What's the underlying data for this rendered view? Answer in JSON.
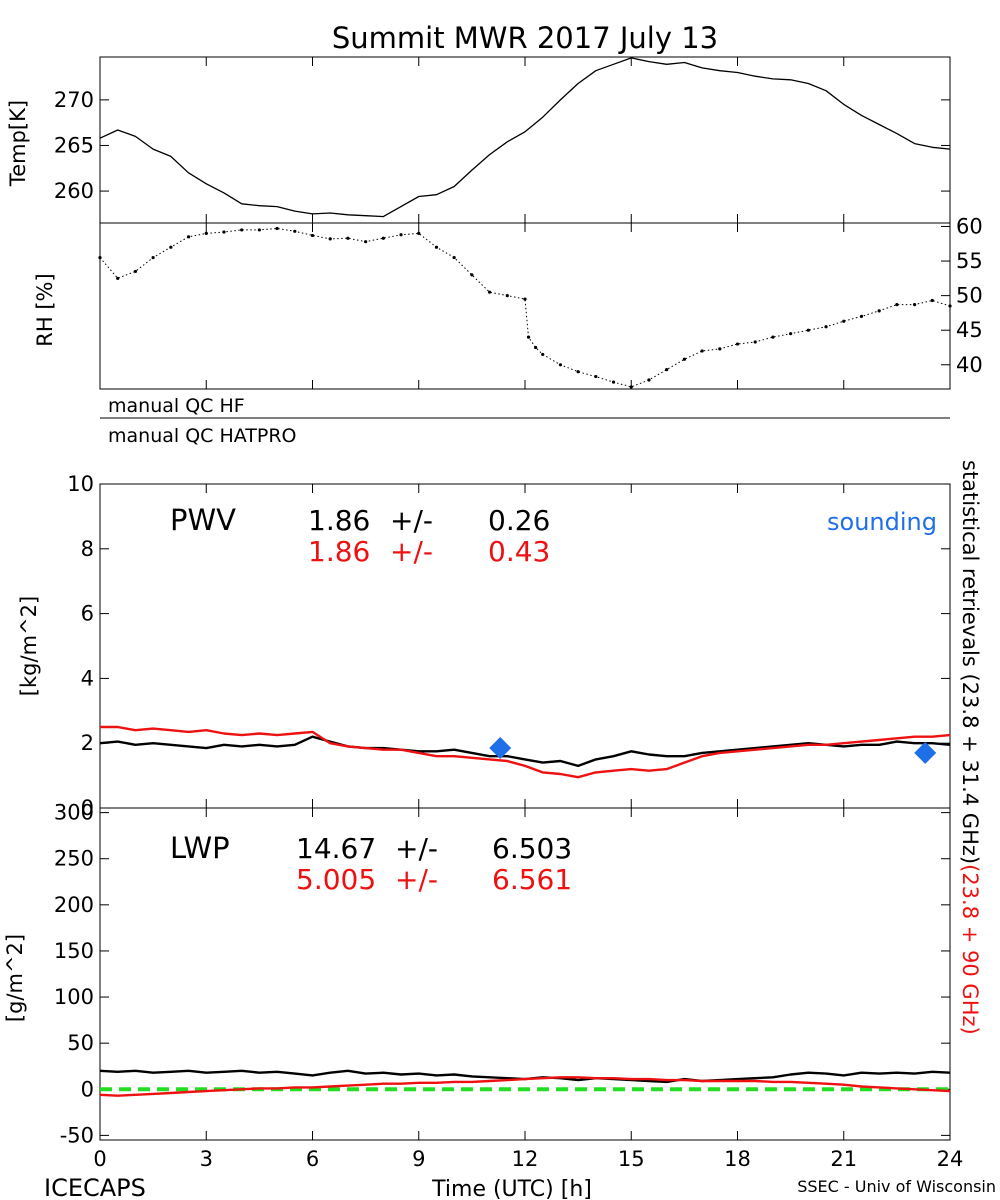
{
  "title": "Summit MWR 2017 July 13",
  "footer": {
    "left": "ICECAPS",
    "center": "Time (UTC) [h]",
    "right": "SSEC - Univ of Wisconsin"
  },
  "qc": {
    "line1": "manual QC HF",
    "line2": "manual QC HATPRO"
  },
  "right_label": {
    "black": "statistical retrievals (23.8 + 31.4 GHz)",
    "red": "(23.8 + 90 GHz)"
  },
  "colors": {
    "black": "#000000",
    "red": "#ee1111",
    "blue": "#1e6fe8",
    "green": "#22dd22"
  },
  "chart_data": [
    {
      "type": "line",
      "id": "temp",
      "ylabel": "Temp[K]",
      "xlim": [
        0,
        24
      ],
      "ylim": [
        256.5,
        274.7
      ],
      "yticks": [
        260,
        265,
        270
      ],
      "series": [
        {
          "color": "black",
          "x": [
            0,
            0.5,
            1,
            1.5,
            2,
            2.5,
            3,
            3.5,
            4,
            4.5,
            5,
            5.5,
            6,
            6.5,
            7,
            7.5,
            8,
            8.5,
            9,
            9.5,
            10,
            10.5,
            11,
            11.5,
            12,
            12.5,
            13,
            13.5,
            14,
            14.5,
            15,
            15.5,
            16,
            16.5,
            17,
            17.5,
            18,
            18.5,
            19,
            19.5,
            20,
            20.5,
            21,
            21.5,
            22,
            22.5,
            23,
            23.5,
            24
          ],
          "y": [
            265.8,
            266.7,
            266.0,
            264.6,
            263.8,
            262.0,
            260.8,
            259.8,
            258.6,
            258.4,
            258.3,
            257.8,
            257.5,
            257.6,
            257.4,
            257.3,
            257.2,
            258.3,
            259.4,
            259.6,
            260.5,
            262.3,
            264.0,
            265.4,
            266.5,
            268.1,
            270.0,
            271.8,
            273.2,
            273.9,
            274.6,
            274.2,
            273.9,
            274.1,
            273.5,
            273.2,
            273.0,
            272.6,
            272.3,
            272.2,
            271.8,
            271.0,
            269.5,
            268.3,
            267.3,
            266.3,
            265.2,
            264.8,
            264.6
          ]
        }
      ]
    },
    {
      "type": "scatter",
      "id": "rh",
      "ylabel": "RH [%]",
      "xlim": [
        0,
        24
      ],
      "ylim": [
        36.5,
        60.5
      ],
      "yticks": [
        40,
        45,
        50,
        55,
        60
      ],
      "series": [
        {
          "color": "black",
          "x": [
            0,
            0.5,
            1,
            1.5,
            2,
            2.5,
            3,
            3.5,
            4,
            4.5,
            5,
            5.5,
            6,
            6.5,
            7,
            7.5,
            8,
            8.5,
            9,
            9.5,
            10,
            10.5,
            11,
            11.5,
            12,
            12.1,
            12.3,
            12.5,
            13,
            13.5,
            14,
            14.5,
            15,
            15.5,
            16,
            16.5,
            17,
            17.5,
            18,
            18.5,
            19,
            19.5,
            20,
            20.5,
            21,
            21.5,
            22,
            22.5,
            23,
            23.5,
            24
          ],
          "y": [
            55.5,
            52.5,
            53.5,
            55.5,
            57.0,
            58.5,
            59.0,
            59.2,
            59.5,
            59.5,
            59.7,
            59.3,
            58.7,
            58.2,
            58.3,
            57.8,
            58.3,
            58.8,
            59.0,
            57.0,
            55.5,
            53.0,
            50.5,
            50.0,
            49.5,
            44.0,
            42.5,
            41.5,
            40.0,
            39.0,
            38.3,
            37.5,
            36.8,
            37.8,
            39.3,
            40.8,
            42.0,
            42.3,
            43.0,
            43.3,
            44.0,
            44.5,
            45.0,
            45.5,
            46.3,
            47.0,
            47.8,
            48.7,
            48.7,
            49.3,
            48.5
          ]
        }
      ]
    },
    {
      "type": "line",
      "id": "pwv",
      "ylabel": "[kg/m^2]",
      "panel_label": "PWV",
      "xlim": [
        0,
        24
      ],
      "ylim": [
        0,
        10
      ],
      "yticks": [
        0,
        2,
        4,
        6,
        8,
        10
      ],
      "stats": [
        {
          "color": "black",
          "mean": "1.86",
          "pm": "+/-",
          "std": "0.26"
        },
        {
          "color": "red",
          "mean": "1.86",
          "pm": "+/-",
          "std": "0.43"
        }
      ],
      "sounding_label": "sounding",
      "sounding_points": [
        {
          "x": 11.3,
          "y": 1.85
        },
        {
          "x": 23.3,
          "y": 1.7
        }
      ],
      "series": [
        {
          "color": "black",
          "x": [
            0,
            0.5,
            1,
            1.5,
            2,
            2.5,
            3,
            3.5,
            4,
            4.5,
            5,
            5.5,
            6,
            6.5,
            7,
            7.5,
            8,
            8.5,
            9,
            9.5,
            10,
            10.5,
            11,
            11.5,
            12,
            12.5,
            13,
            13.5,
            14,
            14.5,
            15,
            15.5,
            16,
            16.5,
            17,
            17.5,
            18,
            18.5,
            19,
            19.5,
            20,
            20.5,
            21,
            21.5,
            22,
            22.5,
            23,
            23.5,
            24
          ],
          "y": [
            2.0,
            2.05,
            1.95,
            2.0,
            1.95,
            1.9,
            1.85,
            1.95,
            1.9,
            1.95,
            1.9,
            1.95,
            2.2,
            2.05,
            1.9,
            1.85,
            1.85,
            1.8,
            1.75,
            1.75,
            1.8,
            1.7,
            1.6,
            1.6,
            1.5,
            1.4,
            1.45,
            1.3,
            1.5,
            1.6,
            1.75,
            1.65,
            1.6,
            1.6,
            1.7,
            1.75,
            1.8,
            1.85,
            1.9,
            1.95,
            2.0,
            1.95,
            1.9,
            1.95,
            1.95,
            2.05,
            2.0,
            2.0,
            1.95
          ]
        },
        {
          "color": "red",
          "x": [
            0,
            0.5,
            1,
            1.5,
            2,
            2.5,
            3,
            3.5,
            4,
            4.5,
            5,
            5.5,
            6,
            6.5,
            7,
            7.5,
            8,
            8.5,
            9,
            9.5,
            10,
            10.5,
            11,
            11.5,
            12,
            12.5,
            13,
            13.5,
            14,
            14.5,
            15,
            15.5,
            16,
            16.5,
            17,
            17.5,
            18,
            18.5,
            19,
            19.5,
            20,
            20.5,
            21,
            21.5,
            22,
            22.5,
            23,
            23.5,
            24
          ],
          "y": [
            2.5,
            2.5,
            2.4,
            2.45,
            2.4,
            2.35,
            2.4,
            2.3,
            2.25,
            2.3,
            2.25,
            2.3,
            2.35,
            2.0,
            1.9,
            1.85,
            1.8,
            1.8,
            1.7,
            1.6,
            1.6,
            1.55,
            1.5,
            1.45,
            1.3,
            1.1,
            1.05,
            0.95,
            1.1,
            1.15,
            1.2,
            1.15,
            1.2,
            1.4,
            1.6,
            1.7,
            1.75,
            1.8,
            1.85,
            1.9,
            1.95,
            1.95,
            2.0,
            2.05,
            2.1,
            2.15,
            2.2,
            2.2,
            2.25
          ]
        }
      ]
    },
    {
      "type": "line",
      "id": "lwp",
      "ylabel": "[g/m^2]",
      "panel_label": "LWP",
      "xlabel": "Time (UTC) [h]",
      "xlim": [
        0,
        24
      ],
      "ylim": [
        -55,
        305
      ],
      "xticks": [
        0,
        3,
        6,
        9,
        12,
        15,
        18,
        21,
        24
      ],
      "yticks": [
        -50,
        0,
        50,
        100,
        150,
        200,
        250,
        300
      ],
      "stats": [
        {
          "color": "black",
          "mean": "14.67",
          "pm": "+/-",
          "std": "6.503"
        },
        {
          "color": "red",
          "mean": "5.005",
          "pm": "+/-",
          "std": "6.561"
        }
      ],
      "zero_line_color": "green",
      "series": [
        {
          "color": "black",
          "x": [
            0,
            0.5,
            1,
            1.5,
            2,
            2.5,
            3,
            3.5,
            4,
            4.5,
            5,
            5.5,
            6,
            6.5,
            7,
            7.5,
            8,
            8.5,
            9,
            9.5,
            10,
            10.5,
            11,
            11.5,
            12,
            12.5,
            13,
            13.5,
            14,
            14.5,
            15,
            15.5,
            16,
            16.5,
            17,
            17.5,
            18,
            18.5,
            19,
            19.5,
            20,
            20.5,
            21,
            21.5,
            22,
            22.5,
            23,
            23.5,
            24
          ],
          "y": [
            20,
            19,
            20,
            18,
            19,
            20,
            18,
            19,
            20,
            18,
            19,
            17,
            15,
            18,
            20,
            17,
            18,
            16,
            17,
            15,
            16,
            14,
            13,
            12,
            11,
            13,
            12,
            10,
            12,
            11,
            10,
            9,
            8,
            11,
            9,
            10,
            11,
            12,
            13,
            16,
            18,
            17,
            15,
            18,
            17,
            18,
            17,
            19,
            18
          ]
        },
        {
          "color": "red",
          "x": [
            0,
            0.5,
            1,
            1.5,
            2,
            2.5,
            3,
            3.5,
            4,
            4.5,
            5,
            5.5,
            6,
            6.5,
            7,
            7.5,
            8,
            8.5,
            9,
            9.5,
            10,
            10.5,
            11,
            11.5,
            12,
            12.5,
            13,
            13.5,
            14,
            14.5,
            15,
            15.5,
            16,
            16.5,
            17,
            17.5,
            18,
            18.5,
            19,
            19.5,
            20,
            20.5,
            21,
            21.5,
            22,
            22.5,
            23,
            23.5,
            24
          ],
          "y": [
            -6,
            -7,
            -6,
            -5,
            -4,
            -3,
            -2,
            -1,
            0,
            1,
            1,
            2,
            2,
            3,
            4,
            5,
            6,
            6,
            7,
            7,
            8,
            8,
            9,
            10,
            11,
            12,
            13,
            13,
            12,
            12,
            11,
            11,
            10,
            10,
            9,
            9,
            9,
            9,
            8,
            8,
            7,
            6,
            5,
            3,
            2,
            1,
            0,
            -1,
            -2
          ]
        }
      ]
    }
  ]
}
